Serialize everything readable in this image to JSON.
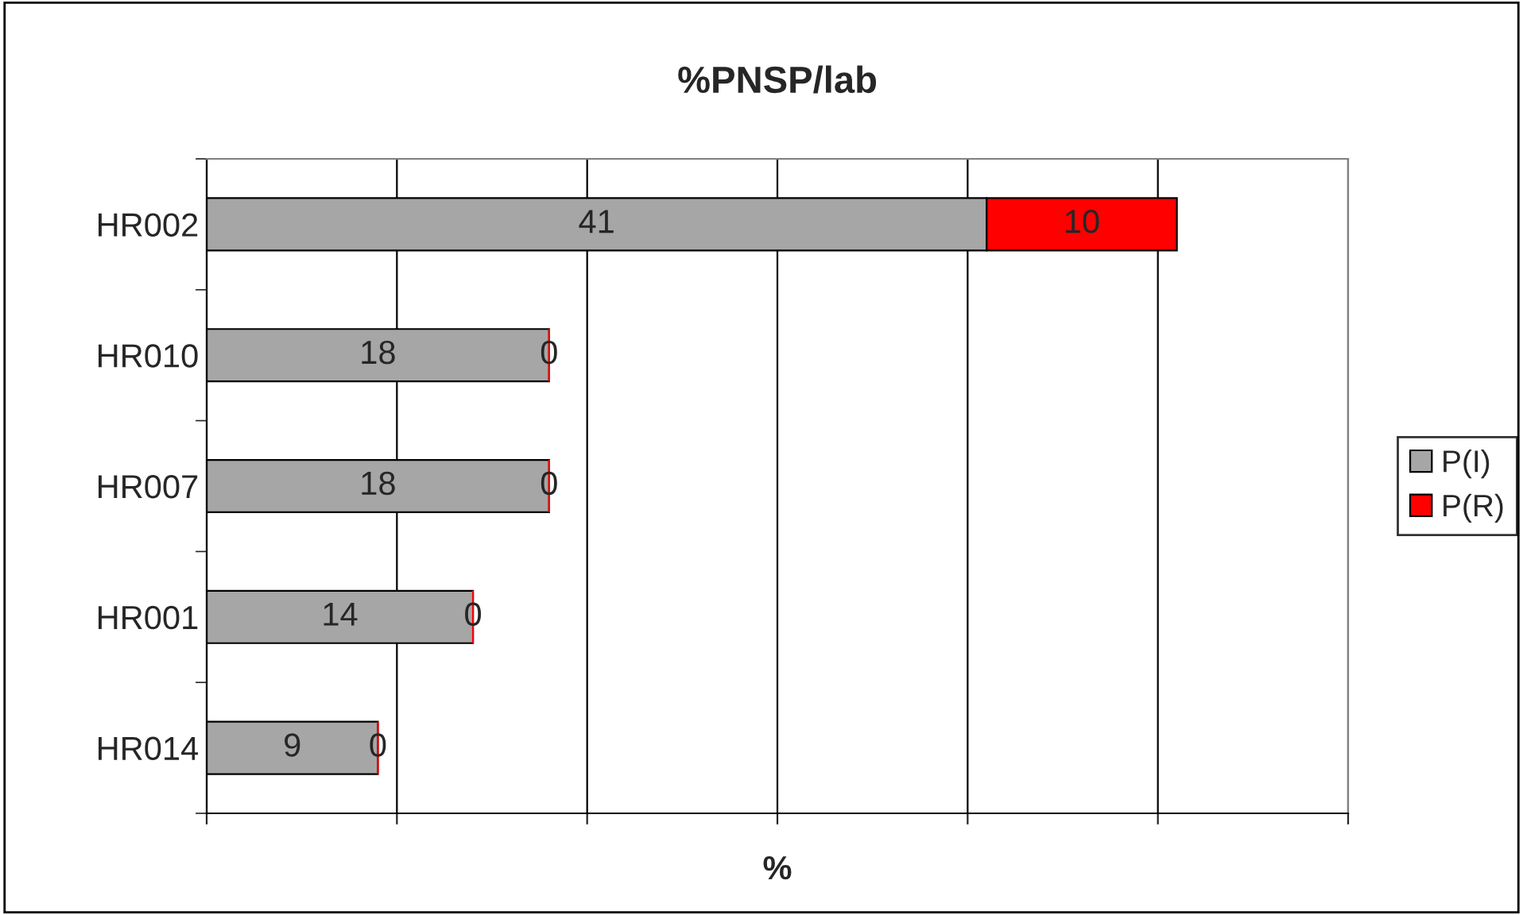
{
  "chart_data": {
    "type": "bar",
    "orientation": "horizontal",
    "stacked": true,
    "title": "%PNSP/lab",
    "xlabel": "%",
    "categories": [
      "HR002",
      "HR010",
      "HR007",
      "HR001",
      "HR014"
    ],
    "series": [
      {
        "name": "P(I)",
        "color": "#a6a6a6",
        "values": [
          41,
          18,
          18,
          14,
          9
        ]
      },
      {
        "name": "P(R)",
        "color": "#ff0000",
        "values": [
          10,
          0,
          0,
          0,
          0
        ]
      }
    ],
    "xlim": [
      0,
      60
    ],
    "xticks": [
      {
        "value": 0,
        "label": null
      },
      {
        "value": 10,
        "label": null
      },
      {
        "value": 20,
        "label": null
      },
      {
        "value": 30,
        "label": null
      },
      {
        "value": 40,
        "label": null
      },
      {
        "value": 50,
        "label": null
      },
      {
        "value": 60,
        "label": null
      }
    ],
    "tick_labels": "y",
    "grid": "x",
    "data_labels": true,
    "legend": "right"
  }
}
